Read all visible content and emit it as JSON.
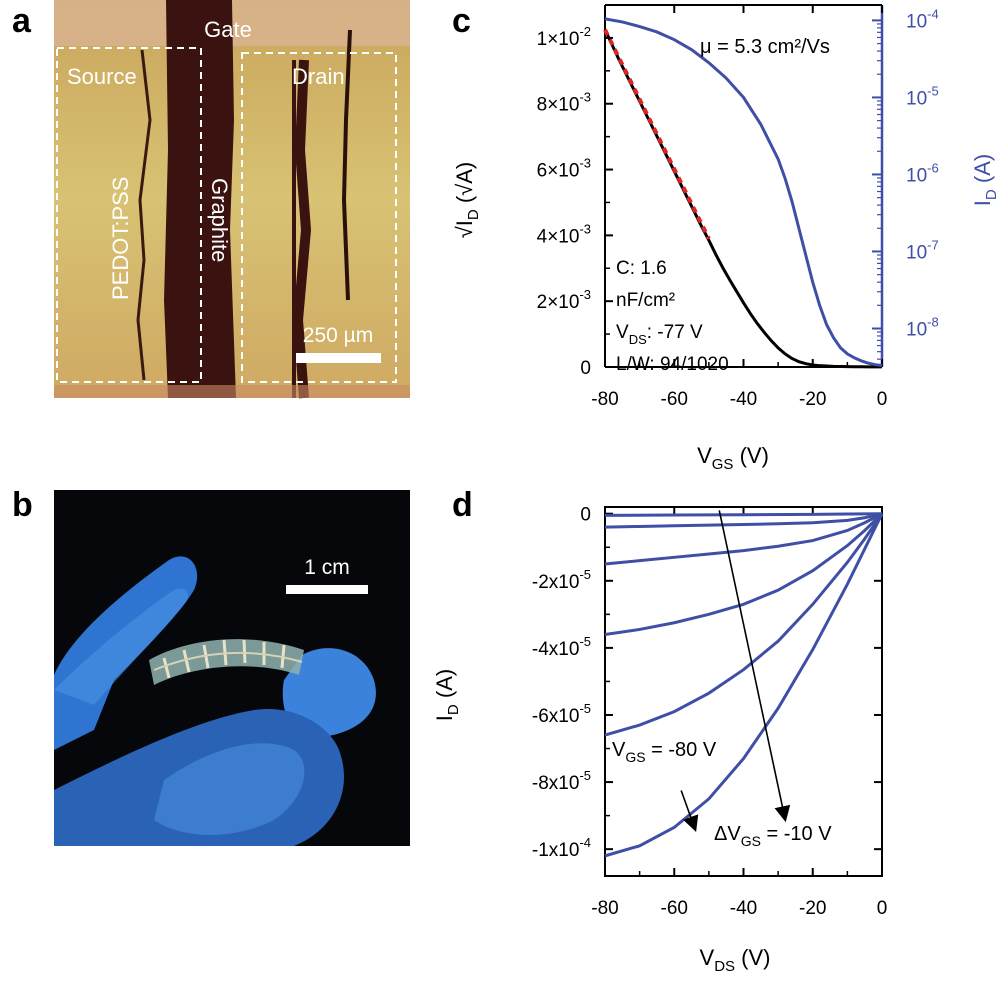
{
  "panels": {
    "a": {
      "letter": "a",
      "labels": {
        "gate": "Gate",
        "source": "Source",
        "drain": "Drain",
        "pedot": "PEDOT:PSS",
        "graphite": "Graphite",
        "scalebar": "250 µm"
      }
    },
    "b": {
      "letter": "b",
      "labels": {
        "scalebar": "1 cm"
      }
    },
    "c": {
      "letter": "c"
    },
    "d": {
      "letter": "d"
    }
  },
  "colors": {
    "blue": "#3f4fa5",
    "black": "#000000",
    "red": "#e02424",
    "axis_right": "#3f4fa5"
  },
  "chart_data": [
    {
      "id": "c",
      "type": "line",
      "xlabel": "V_GS (V)",
      "xlabel_main": "V",
      "xlabel_sub": "GS",
      "xlabel_tail": " (V)",
      "ylabel_left": "√I_D (√A)",
      "ylabel_right": "I_D (A)",
      "xlim": [
        -80,
        0
      ],
      "ylim_left": [
        0,
        0.011
      ],
      "ylim_right_log": [
        -8.5,
        -3.8
      ],
      "x_ticks": [
        -80,
        -60,
        -40,
        -20,
        0
      ],
      "x_tick_labels": [
        "-80",
        "-60",
        "-40",
        "-20",
        "0"
      ],
      "y_left_ticks": [
        0,
        0.002,
        0.004,
        0.006,
        0.008,
        0.01
      ],
      "y_left_tick_labels": [
        {
          "mant": "0",
          "exp": ""
        },
        {
          "mant": "2×10",
          "exp": "-3"
        },
        {
          "mant": "4×10",
          "exp": "-3"
        },
        {
          "mant": "6×10",
          "exp": "-3"
        },
        {
          "mant": "8×10",
          "exp": "-3"
        },
        {
          "mant": "1×10",
          "exp": "-2"
        }
      ],
      "y_right_ticks_log": [
        -8,
        -7,
        -6,
        -5,
        -4
      ],
      "y_right_tick_labels": [
        {
          "mant": "10",
          "exp": "-8"
        },
        {
          "mant": "10",
          "exp": "-7"
        },
        {
          "mant": "10",
          "exp": "-6"
        },
        {
          "mant": "10",
          "exp": "-5"
        },
        {
          "mant": "10",
          "exp": "-4"
        }
      ],
      "annotations": {
        "mobility": "μ = 5.3 cm²/Vs",
        "cap1": "C: 1.6",
        "cap2": "nF/cm²",
        "vds_main": "V",
        "vds_sub": "DS",
        "vds_tail": ": -77 V",
        "lw": "L/W: 94/1020"
      },
      "series": [
        {
          "axis": "left",
          "color": "#000000",
          "x": [
            -80,
            -76,
            -72,
            -68,
            -64,
            -60,
            -56,
            -52,
            -50,
            -48,
            -46,
            -44,
            -42,
            -40,
            -38,
            -36,
            -34,
            -32,
            -30,
            -28,
            -26,
            -24,
            -22,
            -20,
            -18,
            -16,
            -14,
            -12,
            -10,
            -8,
            -6,
            -4,
            -2,
            0
          ],
          "y": [
            0.01025,
            0.00935,
            0.0085,
            0.00765,
            0.0068,
            0.00595,
            0.0051,
            0.00425,
            0.00385,
            0.00342,
            0.00302,
            0.00265,
            0.0023,
            0.00195,
            0.00162,
            0.00132,
            0.00105,
            0.0008,
            0.00058,
            0.0004,
            0.00026,
            0.00016,
            0.0001,
            6e-05,
            4e-05,
            3e-05,
            2e-05,
            1.5e-05,
            1e-05,
            8e-06,
            6e-06,
            5e-06,
            4e-06,
            3e-06
          ]
        },
        {
          "axis": "left",
          "color": "#e02424",
          "dashed": true,
          "x": [
            -80,
            -50
          ],
          "y": [
            0.01025,
            0.0039
          ]
        },
        {
          "axis": "right",
          "color": "#3f4fa5",
          "x": [
            -80,
            -75,
            -70,
            -65,
            -60,
            -55,
            -50,
            -45,
            -40,
            -35,
            -30,
            -28,
            -26,
            -24,
            -22,
            -20,
            -18,
            -16,
            -14,
            -12,
            -10,
            -8,
            -6,
            -4,
            -2,
            0
          ],
          "y": [
            -3.98,
            -4.02,
            -4.08,
            -4.15,
            -4.25,
            -4.38,
            -4.55,
            -4.75,
            -5.0,
            -5.35,
            -5.8,
            -6.05,
            -6.35,
            -6.7,
            -7.05,
            -7.4,
            -7.7,
            -7.95,
            -8.12,
            -8.25,
            -8.33,
            -8.38,
            -8.42,
            -8.45,
            -8.47,
            -8.48
          ]
        }
      ]
    },
    {
      "id": "d",
      "type": "line",
      "xlabel": "V_DS (V)",
      "xlabel_main": "V",
      "xlabel_sub": "DS",
      "xlabel_tail": " (V)",
      "ylabel": "I_D (A)",
      "xlim": [
        -80,
        0
      ],
      "ylim": [
        -0.000108,
        2e-06
      ],
      "x_ticks": [
        -80,
        -60,
        -40,
        -20,
        0
      ],
      "x_tick_labels": [
        "-80",
        "-60",
        "-40",
        "-20",
        "0"
      ],
      "y_ticks": [
        0,
        -2e-05,
        -4e-05,
        -6e-05,
        -8e-05,
        -0.0001
      ],
      "y_tick_labels": [
        {
          "mant": "0",
          "exp": ""
        },
        {
          "mant": "-2x10",
          "exp": "-5"
        },
        {
          "mant": "-4x10",
          "exp": "-5"
        },
        {
          "mant": "-6x10",
          "exp": "-5"
        },
        {
          "mant": "-8x10",
          "exp": "-5"
        },
        {
          "mant": "-1x10",
          "exp": "-4"
        }
      ],
      "annotations": {
        "vgs_main": "V",
        "vgs_sub": "GS",
        "vgs_tail": " = -80 V",
        "dvgs_main": "ΔV",
        "dvgs_sub": "GS",
        "dvgs_tail": " = -10 V"
      },
      "series": [
        {
          "color": "#3f4fa5",
          "x": [
            -80,
            -60,
            -40,
            -20,
            -10,
            -5,
            0
          ],
          "y": [
            -5e-07,
            -4e-07,
            -3e-07,
            -2e-07,
            -1e-07,
            -5e-08,
            0
          ]
        },
        {
          "color": "#3f4fa5",
          "x": [
            -80,
            -70,
            -60,
            -50,
            -40,
            -30,
            -20,
            -10,
            -5,
            0
          ],
          "y": [
            -4e-06,
            -3.8e-06,
            -3.6e-06,
            -3.4e-06,
            -3.2e-06,
            -3e-06,
            -2.7e-06,
            -2e-06,
            -1.2e-06,
            0
          ]
        },
        {
          "color": "#3f4fa5",
          "x": [
            -80,
            -70,
            -60,
            -50,
            -40,
            -30,
            -20,
            -10,
            -5,
            0
          ],
          "y": [
            -1.5e-05,
            -1.4e-05,
            -1.3e-05,
            -1.2e-05,
            -1.1e-05,
            -9.7e-06,
            -8e-06,
            -5e-06,
            -2.7e-06,
            0
          ]
        },
        {
          "color": "#3f4fa5",
          "x": [
            -80,
            -70,
            -60,
            -50,
            -40,
            -30,
            -20,
            -10,
            -5,
            0
          ],
          "y": [
            -3.6e-05,
            -3.45e-05,
            -3.25e-05,
            -3e-05,
            -2.7e-05,
            -2.28e-05,
            -1.7e-05,
            -9.5e-06,
            -5e-06,
            0
          ]
        },
        {
          "color": "#3f4fa5",
          "x": [
            -80,
            -70,
            -60,
            -50,
            -40,
            -30,
            -20,
            -10,
            -5,
            0
          ],
          "y": [
            -6.6e-05,
            -6.3e-05,
            -5.9e-05,
            -5.35e-05,
            -4.65e-05,
            -3.8e-05,
            -2.7e-05,
            -1.45e-05,
            -7.5e-06,
            0
          ]
        },
        {
          "color": "#3f4fa5",
          "x": [
            -80,
            -70,
            -60,
            -50,
            -40,
            -30,
            -20,
            -10,
            -5,
            0
          ],
          "y": [
            -0.000102,
            -9.9e-05,
            -9.35e-05,
            -8.5e-05,
            -7.3e-05,
            -5.8e-05,
            -4.05e-05,
            -2.1e-05,
            -1.05e-05,
            0
          ]
        }
      ]
    }
  ]
}
